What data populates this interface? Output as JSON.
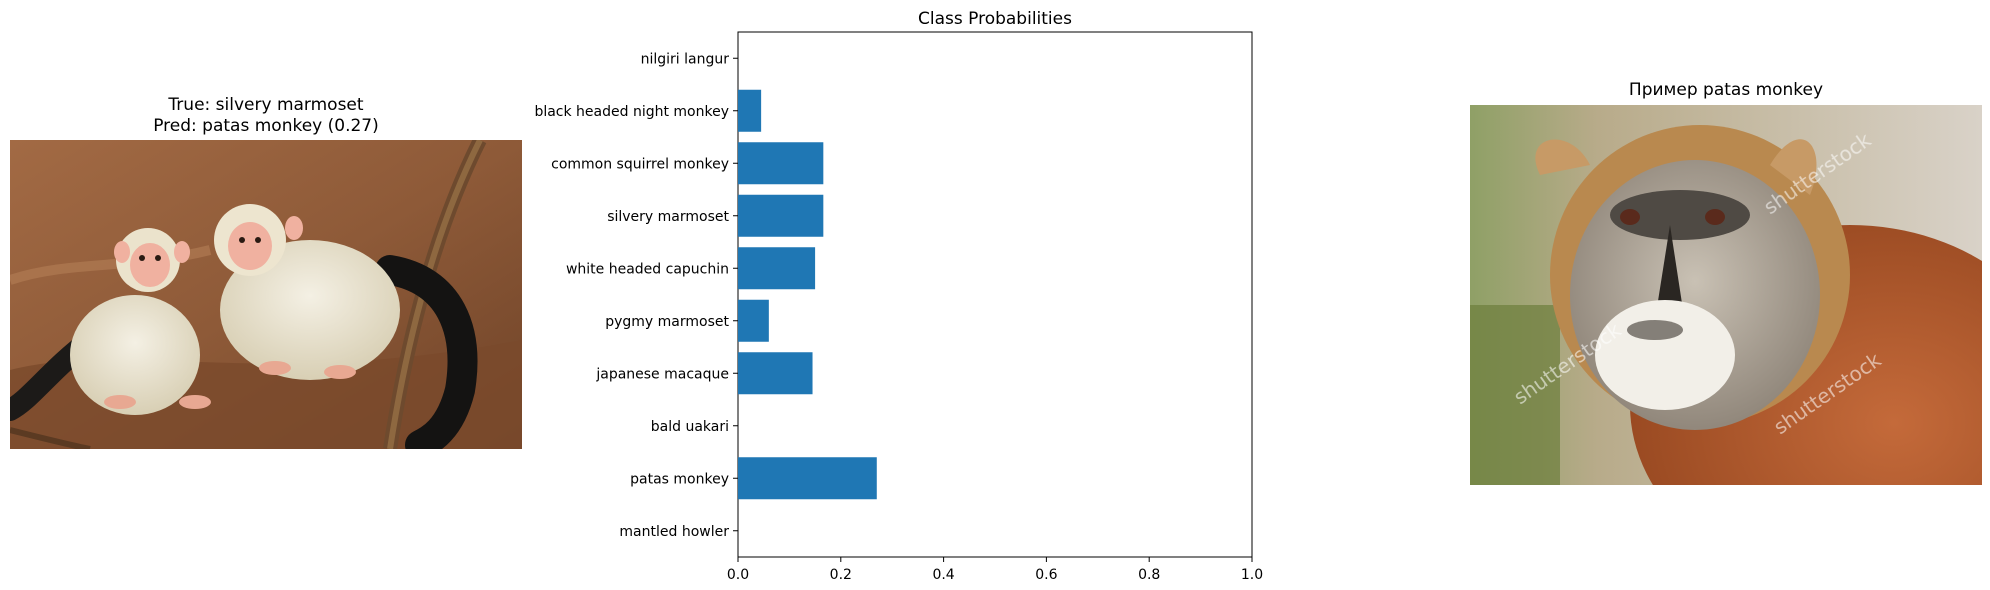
{
  "left_panel": {
    "title_line1": "True: silvery marmoset",
    "title_line2": "Pred: patas monkey (0.27)",
    "image_description": "two silvery marmosets on a branch"
  },
  "right_panel": {
    "title": "Пример patas monkey",
    "image_description": "patas monkey portrait",
    "watermark_text": "shutterstock"
  },
  "chart_data": {
    "type": "bar",
    "orientation": "horizontal",
    "title": "Class Probabilities",
    "categories": [
      "mantled howler",
      "patas monkey",
      "bald uakari",
      "japanese macaque",
      "pygmy marmoset",
      "white headed capuchin",
      "silvery marmoset",
      "common squirrel monkey",
      "black headed night monkey",
      "nilgiri langur"
    ],
    "values": [
      0.0,
      0.27,
      0.0,
      0.145,
      0.06,
      0.15,
      0.166,
      0.166,
      0.045,
      0.0
    ],
    "xlim": [
      0,
      1.0
    ],
    "xticks": [
      "0.0",
      "0.2",
      "0.4",
      "0.6",
      "0.8",
      "1.0"
    ],
    "xlabel": "",
    "ylabel": "",
    "bar_color": "#1f77b4",
    "grid": false
  }
}
